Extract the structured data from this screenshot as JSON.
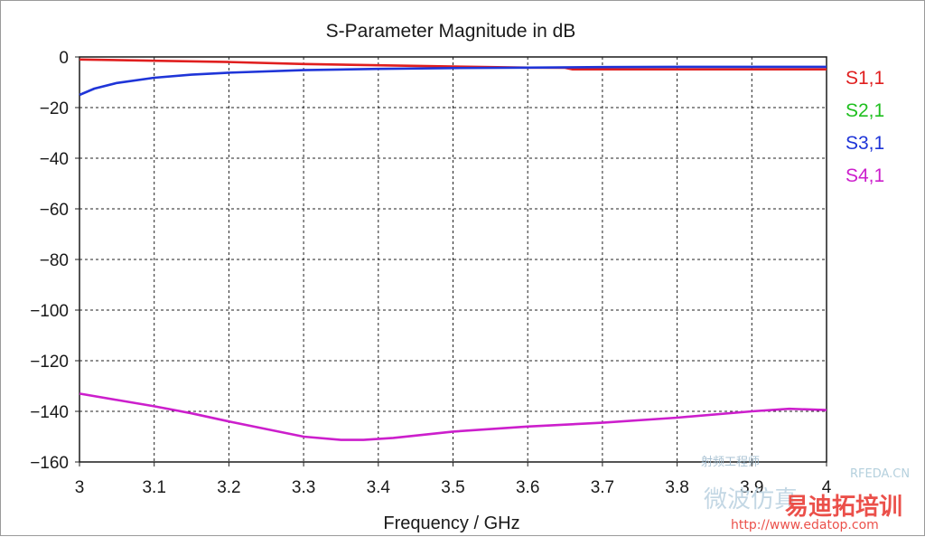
{
  "chart_data": {
    "type": "line",
    "title": "S-Parameter Magnitude in dB",
    "xlabel": "Frequency / GHz",
    "ylabel": "",
    "xlim": [
      3,
      4
    ],
    "ylim": [
      -160,
      0
    ],
    "x_ticks": [
      "3",
      "3.1",
      "3.2",
      "3.3",
      "3.4",
      "3.5",
      "3.6",
      "3.7",
      "3.8",
      "3.9",
      "4"
    ],
    "y_ticks": [
      "0",
      "-20",
      "-40",
      "-60",
      "-80",
      "-100",
      "-120",
      "-140",
      "-160"
    ],
    "grid": true,
    "legend_position": "right",
    "series": [
      {
        "name": "S1,1",
        "color": "#e01f1f",
        "x": [
          3.0,
          3.1,
          3.2,
          3.3,
          3.4,
          3.5,
          3.6,
          3.65,
          3.66,
          3.7,
          3.8,
          3.9,
          4.0
        ],
        "y": [
          -1.0,
          -1.5,
          -2.0,
          -2.8,
          -3.3,
          -3.8,
          -4.2,
          -4.3,
          -4.9,
          -4.9,
          -4.9,
          -4.9,
          -4.9
        ]
      },
      {
        "name": "S2,1",
        "color": "#1fbf1f",
        "x": [],
        "y": []
      },
      {
        "name": "S3,1",
        "color": "#1f35d8",
        "x": [
          3.0,
          3.02,
          3.05,
          3.1,
          3.15,
          3.2,
          3.3,
          3.4,
          3.5,
          3.6,
          3.7,
          3.8,
          3.9,
          4.0
        ],
        "y": [
          -15.0,
          -12.5,
          -10.3,
          -8.2,
          -7.0,
          -6.2,
          -5.2,
          -4.7,
          -4.4,
          -4.2,
          -4.0,
          -3.9,
          -3.9,
          -3.9
        ]
      },
      {
        "name": "S4,1",
        "color": "#cc1fcc",
        "x": [
          3.0,
          3.05,
          3.1,
          3.15,
          3.2,
          3.25,
          3.3,
          3.35,
          3.38,
          3.42,
          3.5,
          3.6,
          3.7,
          3.8,
          3.9,
          3.95,
          4.0
        ],
        "y": [
          -133,
          -135.5,
          -138,
          -140.8,
          -144,
          -147,
          -150,
          -151.3,
          -151.3,
          -150.5,
          -148,
          -146,
          -144.5,
          -142.5,
          -140,
          -139,
          -139.5
        ]
      }
    ]
  },
  "watermark": {
    "brand_cn": "易迪拓培训",
    "url": "http://www.edatop.com",
    "site": "RFEDA.CN",
    "text_cn": "微波仿真",
    "small_cn": "射频工程师"
  }
}
